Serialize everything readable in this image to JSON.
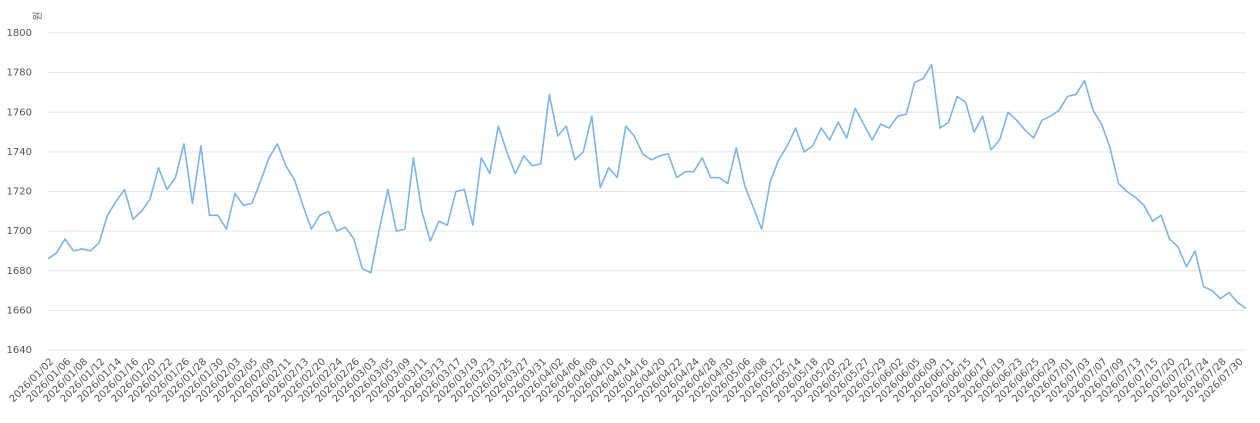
{
  "chart_data": {
    "type": "line",
    "y_label": "원",
    "categories": [
      "2026/01/02",
      null,
      "2026/01/06",
      null,
      "2026/01/08",
      null,
      "2026/01/12",
      null,
      "2026/01/14",
      null,
      "2026/01/16",
      null,
      "2026/01/20",
      null,
      "2026/01/22",
      null,
      "2026/01/26",
      null,
      "2026/01/28",
      null,
      "2026/01/30",
      null,
      "2026/02/03",
      null,
      "2026/02/05",
      null,
      "2026/02/09",
      null,
      "2026/02/11",
      null,
      "2026/02/13",
      null,
      "2026/02/20",
      null,
      "2026/02/24",
      null,
      "2026/02/26",
      null,
      "2026/03/03",
      null,
      "2026/03/05",
      null,
      "2026/03/09",
      null,
      "2026/03/11",
      null,
      "2026/03/13",
      null,
      "2026/03/17",
      null,
      "2026/03/19",
      null,
      "2026/03/23",
      null,
      "2026/03/25",
      null,
      "2026/03/27",
      null,
      "2026/03/31",
      null,
      "2026/04/02",
      null,
      "2026/04/06",
      null,
      "2026/04/08",
      null,
      "2026/04/10",
      null,
      "2026/04/14",
      null,
      "2026/04/16",
      null,
      "2026/04/20",
      null,
      "2026/04/22",
      null,
      "2026/04/24",
      null,
      "2026/04/28",
      null,
      "2026/04/30",
      null,
      "2026/05/06",
      null,
      "2026/05/08",
      null,
      "2026/05/12",
      null,
      "2026/05/14",
      null,
      "2026/05/18",
      null,
      "2026/05/20",
      null,
      "2026/05/22",
      null,
      "2026/05/27",
      null,
      "2026/05/29",
      null,
      "2026/06/02",
      null,
      "2026/06/05",
      null,
      "2026/06/09",
      null,
      "2026/06/11",
      null,
      "2026/06/15",
      null,
      "2026/06/17",
      null,
      "2026/06/19",
      null,
      "2026/06/23",
      null,
      "2026/06/25",
      null,
      "2026/06/29",
      null,
      "2026/07/01",
      null,
      "2026/07/03",
      null,
      "2026/07/07",
      null,
      "2026/07/09",
      null,
      "2026/07/13",
      null,
      "2026/07/15",
      null,
      "2026/07/20",
      null,
      "2026/07/22",
      null,
      "2026/07/24",
      null,
      "2026/07/28",
      null,
      "2026/07/30",
      null
    ],
    "values": [
      1686,
      1689,
      1696,
      1690,
      1691,
      1690,
      1694,
      1708,
      1715,
      1721,
      1706,
      1710,
      1716,
      1732,
      1721,
      1727,
      1744,
      1714,
      1743,
      1708,
      1708,
      1701,
      1719,
      1713,
      1714,
      1725,
      1737,
      1744,
      1733,
      1726,
      1713,
      1701,
      1708,
      1710,
      1700,
      1702,
      1696,
      1681,
      1679,
      1701,
      1721,
      1700,
      1701,
      1737,
      1710,
      1695,
      1705,
      1703,
      1720,
      1721,
      1703,
      1737,
      1729,
      1753,
      1740,
      1729,
      1738,
      1733,
      1734,
      1769,
      1748,
      1753,
      1736,
      1740,
      1758,
      1722,
      1732,
      1727,
      1753,
      1748,
      1739,
      1736,
      1738,
      1739,
      1727,
      1730,
      1730,
      1737,
      1727,
      1727,
      1724,
      1742,
      1723,
      1712,
      1701,
      1725,
      1736,
      1743,
      1752,
      1740,
      1743,
      1752,
      1746,
      1755,
      1747,
      1762,
      1754,
      1746,
      1754,
      1752,
      1758,
      1759,
      1775,
      1777,
      1784,
      1752,
      1755,
      1768,
      1765,
      1750,
      1758,
      1741,
      1746,
      1760,
      1756,
      1751,
      1747,
      1756,
      1758,
      1761,
      1768,
      1769,
      1776,
      1761,
      1754,
      1742,
      1724,
      1720,
      1717,
      1713,
      1705,
      1708,
      1696,
      1692,
      1682,
      1690,
      1672,
      1670,
      1666,
      1669,
      1664,
      1661
    ],
    "color": "#7cb5ec",
    "ylim": [
      1640,
      1800
    ],
    "yticks": [
      1640,
      1660,
      1680,
      1700,
      1720,
      1740,
      1760,
      1780,
      1800
    ],
    "grid": true
  }
}
